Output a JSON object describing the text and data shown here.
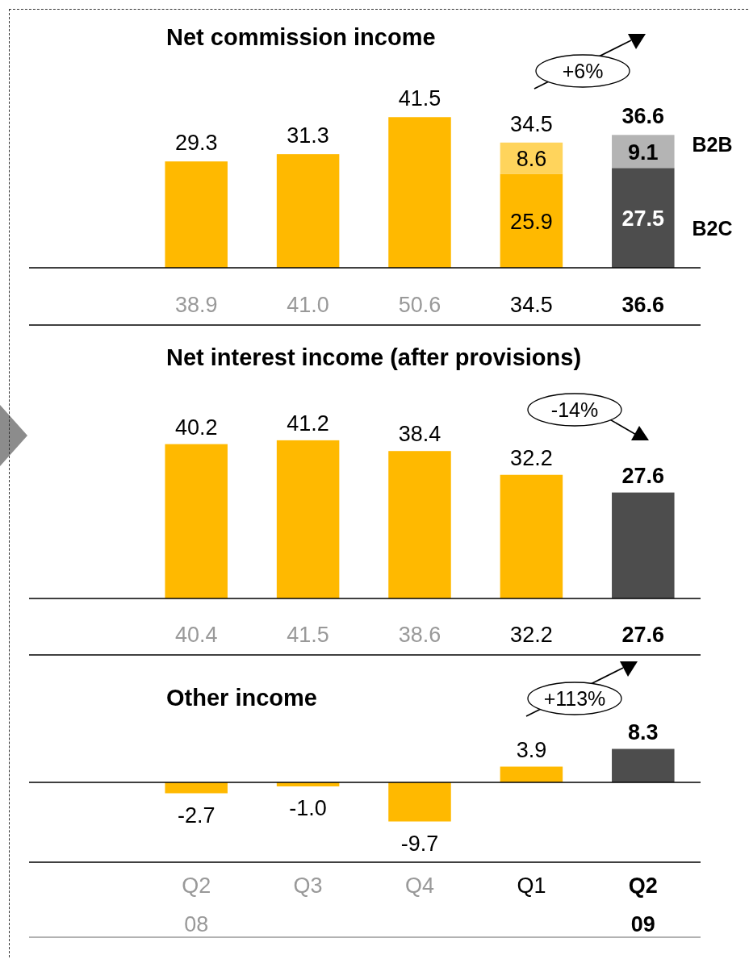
{
  "chart_data": [
    {
      "type": "bar",
      "title": "Net commission income",
      "stacked": true,
      "tick_labels": false,
      "series": [
        {
          "name": "B2C",
          "colors": [
            "#ffb900",
            "#ffb900",
            "#ffb900",
            "#ffb900",
            "#4d4d4d"
          ],
          "values": [
            29.3,
            31.3,
            41.5,
            25.9,
            27.5
          ],
          "value_labels": [
            null,
            null,
            null,
            "25.9",
            "27.5"
          ]
        },
        {
          "name": "B2B",
          "colors": [
            null,
            null,
            null,
            "#ffd45c",
            "#b4b4b4"
          ],
          "values": [
            null,
            null,
            null,
            8.6,
            9.1
          ],
          "value_labels": [
            null,
            null,
            null,
            "8.6",
            "9.1"
          ]
        }
      ],
      "totals": [
        "29.3",
        "31.3",
        "41.5",
        "34.5",
        "36.6"
      ],
      "annotations": [
        "+6%",
        "38.9",
        "41.0",
        "50.6",
        "34.5",
        "36.6"
      ]
    },
    {
      "type": "bar",
      "title": "Net interest income (after provisions)",
      "tick_labels": false,
      "colors": [
        "#ffb900",
        "#ffb900",
        "#ffb900",
        "#ffb900",
        "#4d4d4d"
      ],
      "values": [
        40.2,
        41.2,
        38.4,
        32.2,
        27.6
      ],
      "data_labels": true,
      "annotations": [
        "-14%",
        "40.4",
        "41.5",
        "38.6",
        "32.2",
        "27.6"
      ]
    },
    {
      "type": "bar",
      "title": "Other income",
      "categories": [
        "Q2",
        "Q3",
        "Q4",
        "Q1",
        "Q2"
      ],
      "tick_labels": "x",
      "colors": [
        "#ffb900",
        "#ffb900",
        "#ffb900",
        "#ffb900",
        "#4d4d4d"
      ],
      "values": [
        -2.7,
        -1.0,
        -9.7,
        3.9,
        8.3
      ],
      "value_labels": [
        "-2.7",
        "-1.0",
        "-9.7",
        "3.9",
        "8.3"
      ],
      "annotations": [
        "+113%",
        "08",
        "09"
      ]
    }
  ]
}
